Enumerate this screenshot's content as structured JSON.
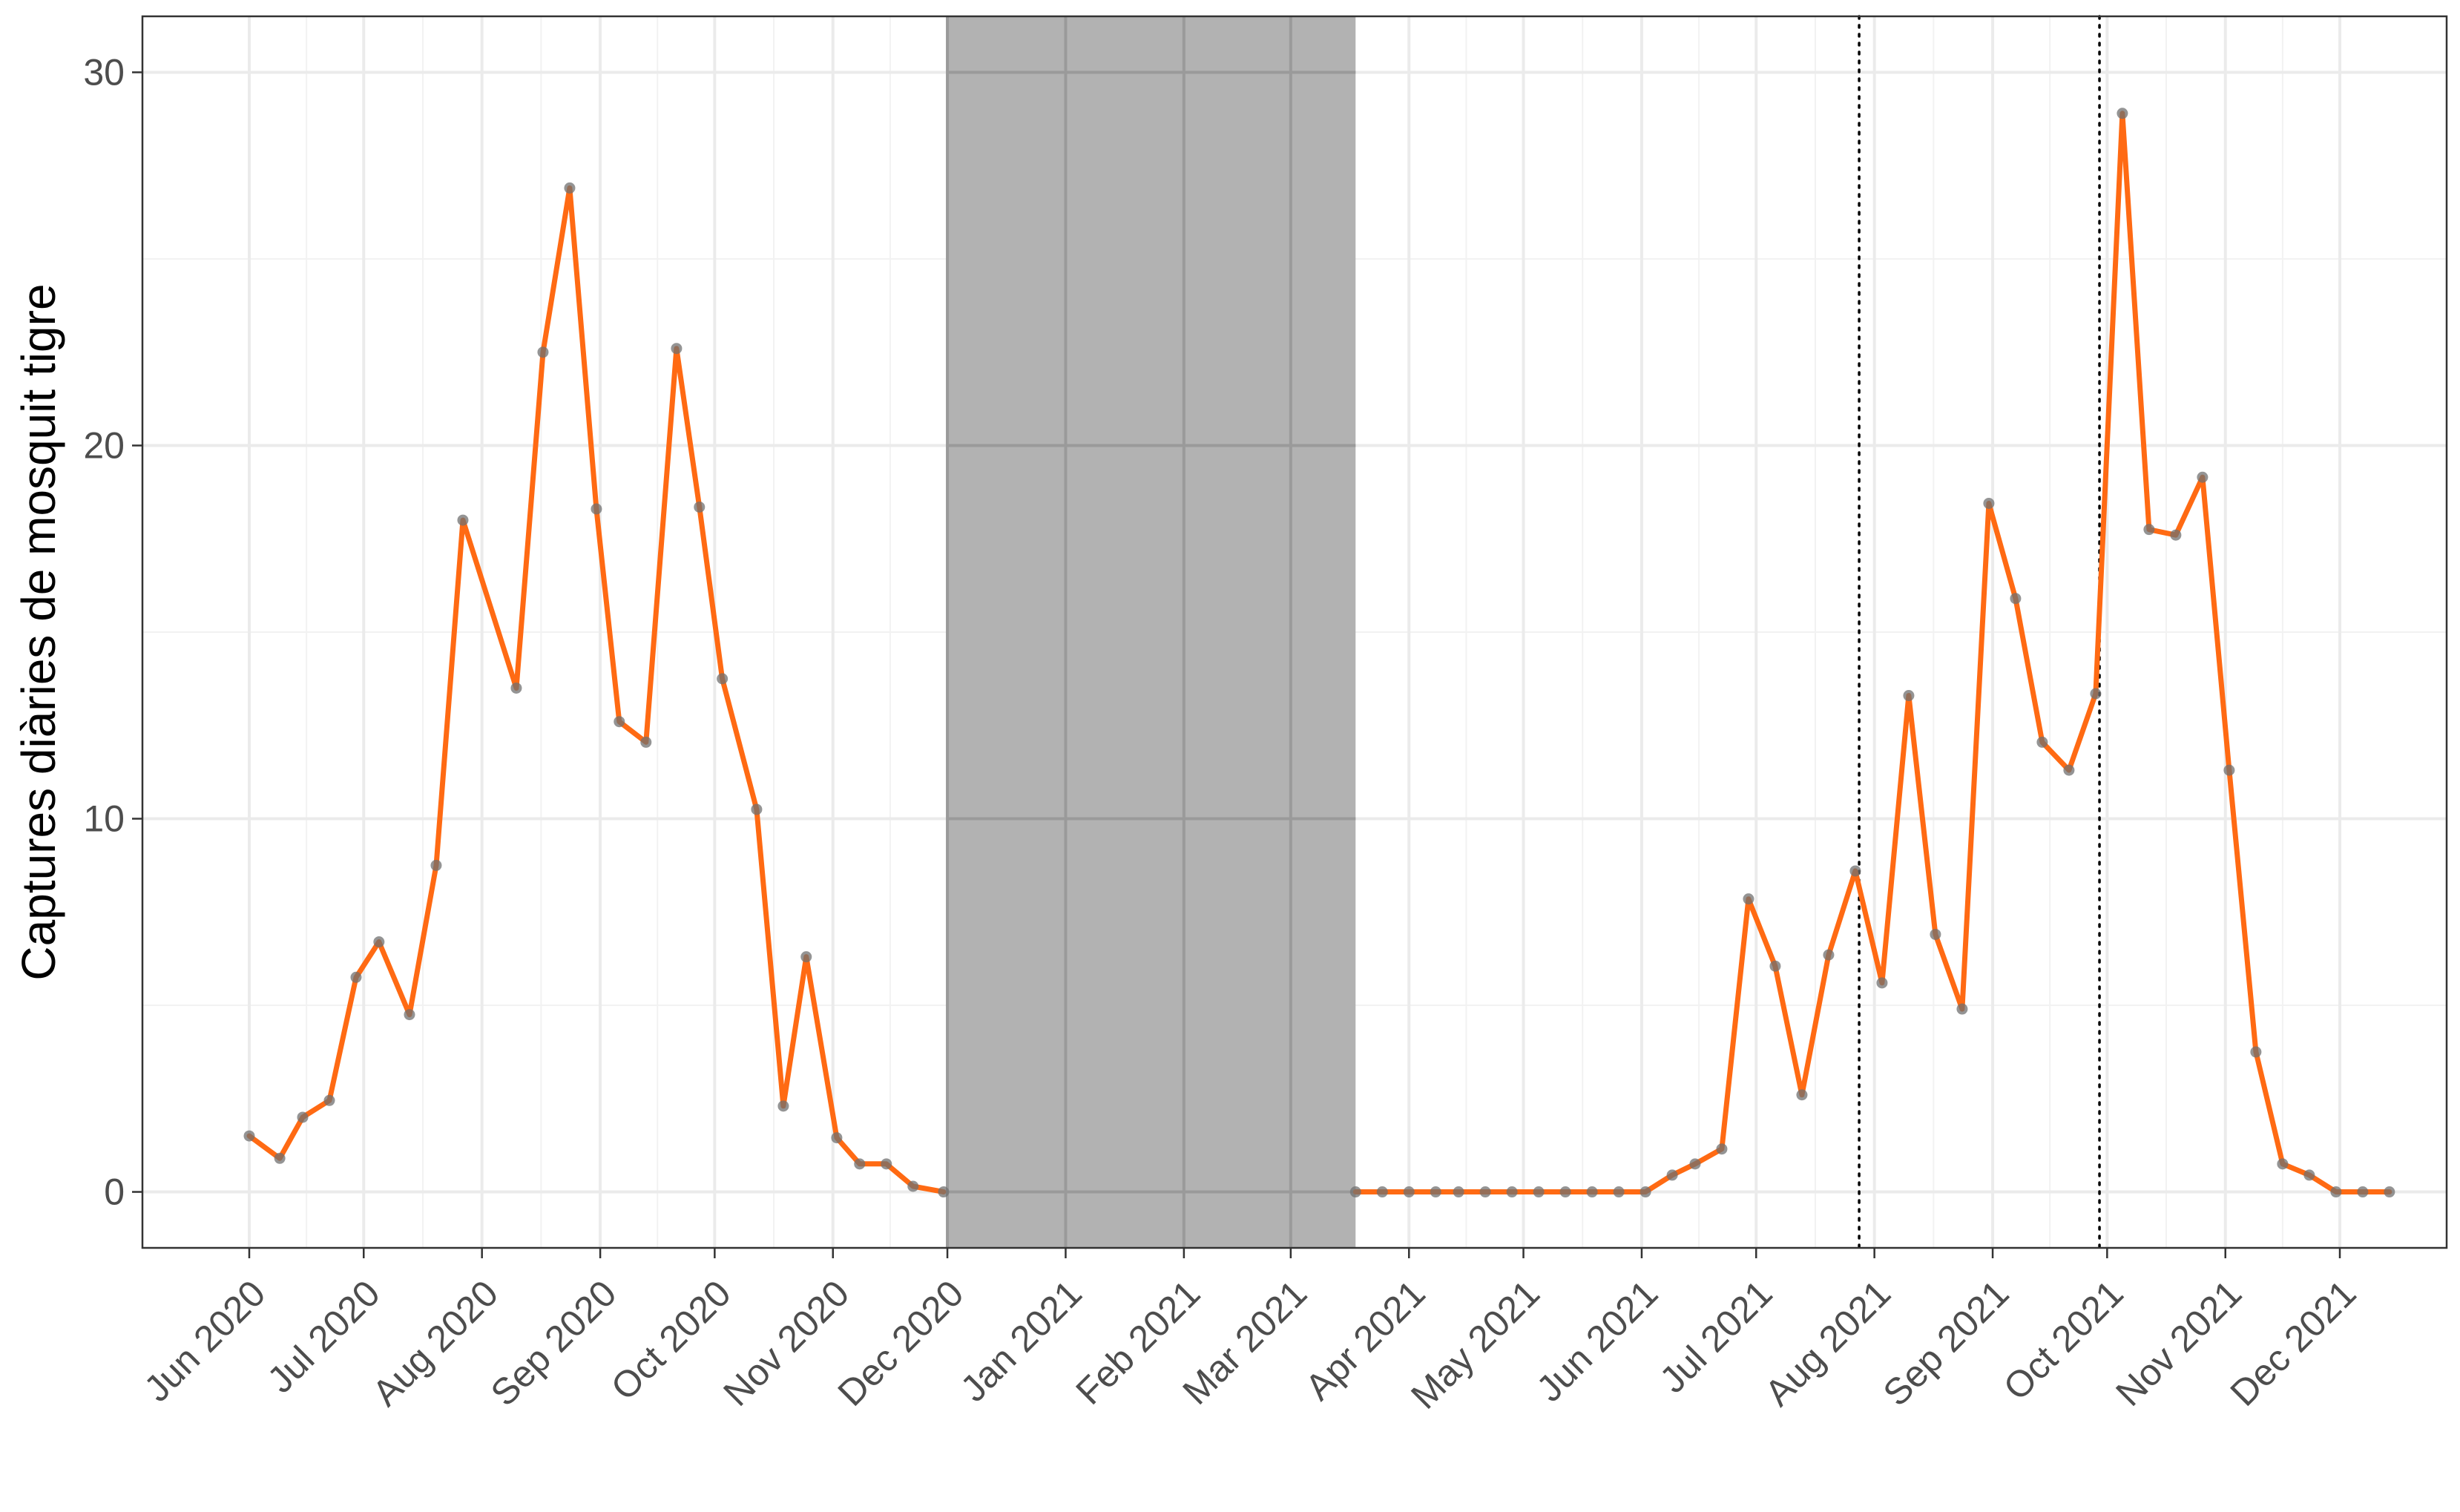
{
  "chart_data": {
    "type": "line",
    "title": "",
    "xlabel": "",
    "ylabel": "Captures diàries de mosquit tigre",
    "x_tick_labels": [
      "Jun 2020",
      "Jul 2020",
      "Aug 2020",
      "Sep 2020",
      "Oct 2020",
      "Nov 2020",
      "Dec 2020",
      "Jan 2021",
      "Feb 2021",
      "Mar 2021",
      "Apr 2021",
      "May 2021",
      "Jun 2021",
      "Jul 2021",
      "Aug 2021",
      "Sep 2021",
      "Oct 2021",
      "Nov 2021",
      "Dec 2021"
    ],
    "x_tick_dates": [
      "2020-06-01",
      "2020-07-01",
      "2020-08-01",
      "2020-09-01",
      "2020-10-01",
      "2020-11-01",
      "2020-12-01",
      "2021-01-01",
      "2021-02-01",
      "2021-03-01",
      "2021-04-01",
      "2021-05-01",
      "2021-06-01",
      "2021-07-01",
      "2021-08-01",
      "2021-09-01",
      "2021-10-01",
      "2021-11-01",
      "2021-12-01"
    ],
    "y_ticks": [
      0,
      10,
      20,
      30
    ],
    "xlim": [
      "2020-05-04",
      "2021-12-29"
    ],
    "ylim": [
      -1.5,
      31.5
    ],
    "grid": true,
    "shaded_region": {
      "x_start": "2020-12-01",
      "x_end": "2021-03-18",
      "color": "#b2b2b2"
    },
    "vertical_reference_lines": [
      "2021-07-28",
      "2021-09-29"
    ],
    "series": [
      {
        "color": "#ff6a13",
        "marker_color": "#707070",
        "segments": [
          [
            {
              "x": "2020-06-01",
              "y": 1.5
            },
            {
              "x": "2020-06-09",
              "y": 0.9
            },
            {
              "x": "2020-06-15",
              "y": 2.0
            },
            {
              "x": "2020-06-22",
              "y": 2.45
            },
            {
              "x": "2020-06-29",
              "y": 5.75
            },
            {
              "x": "2020-07-05",
              "y": 6.7
            },
            {
              "x": "2020-07-13",
              "y": 4.75
            },
            {
              "x": "2020-07-20",
              "y": 8.75
            },
            {
              "x": "2020-07-27",
              "y": 18.0
            },
            {
              "x": "2020-08-10",
              "y": 13.5
            },
            {
              "x": "2020-08-17",
              "y": 22.5
            },
            {
              "x": "2020-08-24",
              "y": 26.9
            },
            {
              "x": "2020-08-31",
              "y": 18.3
            },
            {
              "x": "2020-09-06",
              "y": 12.6
            },
            {
              "x": "2020-09-13",
              "y": 12.05
            },
            {
              "x": "2020-09-21",
              "y": 22.6
            },
            {
              "x": "2020-09-27",
              "y": 18.35
            },
            {
              "x": "2020-10-03",
              "y": 13.75
            },
            {
              "x": "2020-10-12",
              "y": 10.25
            },
            {
              "x": "2020-10-19",
              "y": 2.3
            },
            {
              "x": "2020-10-25",
              "y": 6.3
            },
            {
              "x": "2020-11-02",
              "y": 1.45
            },
            {
              "x": "2020-11-08",
              "y": 0.75
            },
            {
              "x": "2020-11-15",
              "y": 0.75
            },
            {
              "x": "2020-11-22",
              "y": 0.15
            },
            {
              "x": "2020-11-30",
              "y": 0.0
            }
          ],
          [
            {
              "x": "2021-03-18",
              "y": 0.0
            },
            {
              "x": "2021-03-25",
              "y": 0.0
            },
            {
              "x": "2021-04-01",
              "y": 0.0
            },
            {
              "x": "2021-04-08",
              "y": 0.0
            },
            {
              "x": "2021-04-14",
              "y": 0.0
            },
            {
              "x": "2021-04-21",
              "y": 0.0
            },
            {
              "x": "2021-04-28",
              "y": 0.0
            },
            {
              "x": "2021-05-05",
              "y": 0.0
            },
            {
              "x": "2021-05-12",
              "y": 0.0
            },
            {
              "x": "2021-05-19",
              "y": 0.0
            },
            {
              "x": "2021-05-26",
              "y": 0.0
            },
            {
              "x": "2021-06-02",
              "y": 0.0
            },
            {
              "x": "2021-06-09",
              "y": 0.45
            },
            {
              "x": "2021-06-15",
              "y": 0.75
            },
            {
              "x": "2021-06-22",
              "y": 1.15
            },
            {
              "x": "2021-06-29",
              "y": 7.85
            },
            {
              "x": "2021-07-06",
              "y": 6.05
            },
            {
              "x": "2021-07-13",
              "y": 2.6
            },
            {
              "x": "2021-07-20",
              "y": 6.35
            },
            {
              "x": "2021-07-27",
              "y": 8.6
            },
            {
              "x": "2021-08-03",
              "y": 5.6
            },
            {
              "x": "2021-08-10",
              "y": 13.3
            },
            {
              "x": "2021-08-17",
              "y": 6.9
            },
            {
              "x": "2021-08-24",
              "y": 4.9
            },
            {
              "x": "2021-08-31",
              "y": 18.45
            },
            {
              "x": "2021-09-07",
              "y": 15.9
            },
            {
              "x": "2021-09-14",
              "y": 12.05
            },
            {
              "x": "2021-09-21",
              "y": 11.3
            },
            {
              "x": "2021-09-28",
              "y": 13.35
            },
            {
              "x": "2021-10-05",
              "y": 28.9
            },
            {
              "x": "2021-10-12",
              "y": 17.75
            },
            {
              "x": "2021-10-19",
              "y": 17.6
            },
            {
              "x": "2021-10-26",
              "y": 19.15
            },
            {
              "x": "2021-11-02",
              "y": 11.3
            },
            {
              "x": "2021-11-09",
              "y": 3.75
            },
            {
              "x": "2021-11-16",
              "y": 0.75
            },
            {
              "x": "2021-11-23",
              "y": 0.45
            },
            {
              "x": "2021-11-30",
              "y": 0.0
            },
            {
              "x": "2021-12-07",
              "y": 0.0
            },
            {
              "x": "2021-12-14",
              "y": 0.0
            }
          ]
        ]
      }
    ]
  }
}
